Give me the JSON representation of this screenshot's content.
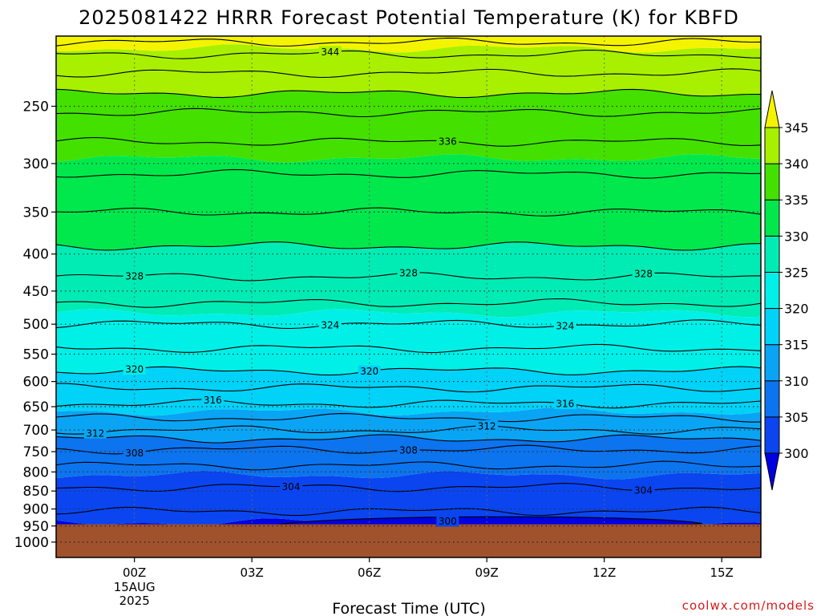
{
  "chart_data": {
    "type": "heatmap",
    "title": "2025081422 HRRR Forecast Potential Temperature (K) for KBFD",
    "xlabel": "Forecast Time (UTC)",
    "ylabel": "",
    "credit": "coolwx.com/models",
    "x_range_hours": [
      -2,
      16
    ],
    "y_range_hpa": [
      1050,
      200
    ],
    "y_scale": "log",
    "grid": true,
    "x_ticks": [
      {
        "hour": 0,
        "label": "00Z",
        "sub": [
          "15AUG",
          "2025"
        ]
      },
      {
        "hour": 3,
        "label": "03Z"
      },
      {
        "hour": 6,
        "label": "06Z"
      },
      {
        "hour": 9,
        "label": "09Z"
      },
      {
        "hour": 12,
        "label": "12Z"
      },
      {
        "hour": 15,
        "label": "15Z"
      }
    ],
    "y_ticks": [
      250,
      300,
      350,
      400,
      450,
      500,
      550,
      600,
      650,
      700,
      750,
      800,
      850,
      900,
      950,
      1000
    ],
    "surface_pressure_hpa": 945,
    "colorbar": {
      "levels": [
        300,
        305,
        310,
        315,
        320,
        325,
        330,
        335,
        340,
        345
      ],
      "labels": [
        "300",
        "305",
        "310",
        "315",
        "320",
        "325",
        "330",
        "335",
        "340",
        "345"
      ],
      "colors": [
        "#0000e0",
        "#0a45f0",
        "#0c74ee",
        "#0aa4f4",
        "#00d2f8",
        "#00f0e8",
        "#00ecb4",
        "#00e84c",
        "#44e000",
        "#a8f000",
        "#f4f400"
      ],
      "extend": "both"
    },
    "contours": [
      {
        "value": 300,
        "label": "300",
        "label_hour": 8.0
      },
      {
        "value": 304,
        "label": "304",
        "label_hour": 4.0
      },
      {
        "value": 304,
        "label": "304",
        "label_hour": 13.0
      },
      {
        "value": 308,
        "label": "308",
        "label_hour": 0.0
      },
      {
        "value": 308,
        "label": "308",
        "label_hour": 7.0
      },
      {
        "value": 312,
        "label": "312",
        "label_hour": -1.0
      },
      {
        "value": 312,
        "label": "312",
        "label_hour": 9.0
      },
      {
        "value": 316,
        "label": "316",
        "label_hour": 2.0
      },
      {
        "value": 316,
        "label": "316",
        "label_hour": 11.0
      },
      {
        "value": 320,
        "label": "320",
        "label_hour": 0.0
      },
      {
        "value": 320,
        "label": "320",
        "label_hour": 6.0
      },
      {
        "value": 324,
        "label": "324",
        "label_hour": 5.0
      },
      {
        "value": 324,
        "label": "324",
        "label_hour": 11.0
      },
      {
        "value": 328,
        "label": "328",
        "label_hour": 0.0
      },
      {
        "value": 328,
        "label": "328",
        "label_hour": 7.0
      },
      {
        "value": 328,
        "label": "328",
        "label_hour": 13.0
      },
      {
        "value": 336,
        "label": "336",
        "label_hour": 8.0
      },
      {
        "value": 344,
        "label": "344",
        "label_hour": 5.0
      }
    ],
    "theta_profile": [
      {
        "p": 945,
        "theta": 299.5
      },
      {
        "p": 920,
        "theta": 301.5
      },
      {
        "p": 880,
        "theta": 303
      },
      {
        "p": 820,
        "theta": 304.5
      },
      {
        "p": 760,
        "theta": 307
      },
      {
        "p": 730,
        "theta": 309
      },
      {
        "p": 700,
        "theta": 312
      },
      {
        "p": 660,
        "theta": 315
      },
      {
        "p": 620,
        "theta": 317.5
      },
      {
        "p": 580,
        "theta": 320
      },
      {
        "p": 530,
        "theta": 322.5
      },
      {
        "p": 490,
        "theta": 324.5
      },
      {
        "p": 460,
        "theta": 326.5
      },
      {
        "p": 430,
        "theta": 328
      },
      {
        "p": 390,
        "theta": 330
      },
      {
        "p": 350,
        "theta": 332
      },
      {
        "p": 310,
        "theta": 334
      },
      {
        "p": 280,
        "theta": 336
      },
      {
        "p": 255,
        "theta": 338
      },
      {
        "p": 240,
        "theta": 340
      },
      {
        "p": 225,
        "theta": 342
      },
      {
        "p": 212,
        "theta": 344
      },
      {
        "p": 200,
        "theta": 347
      }
    ]
  }
}
